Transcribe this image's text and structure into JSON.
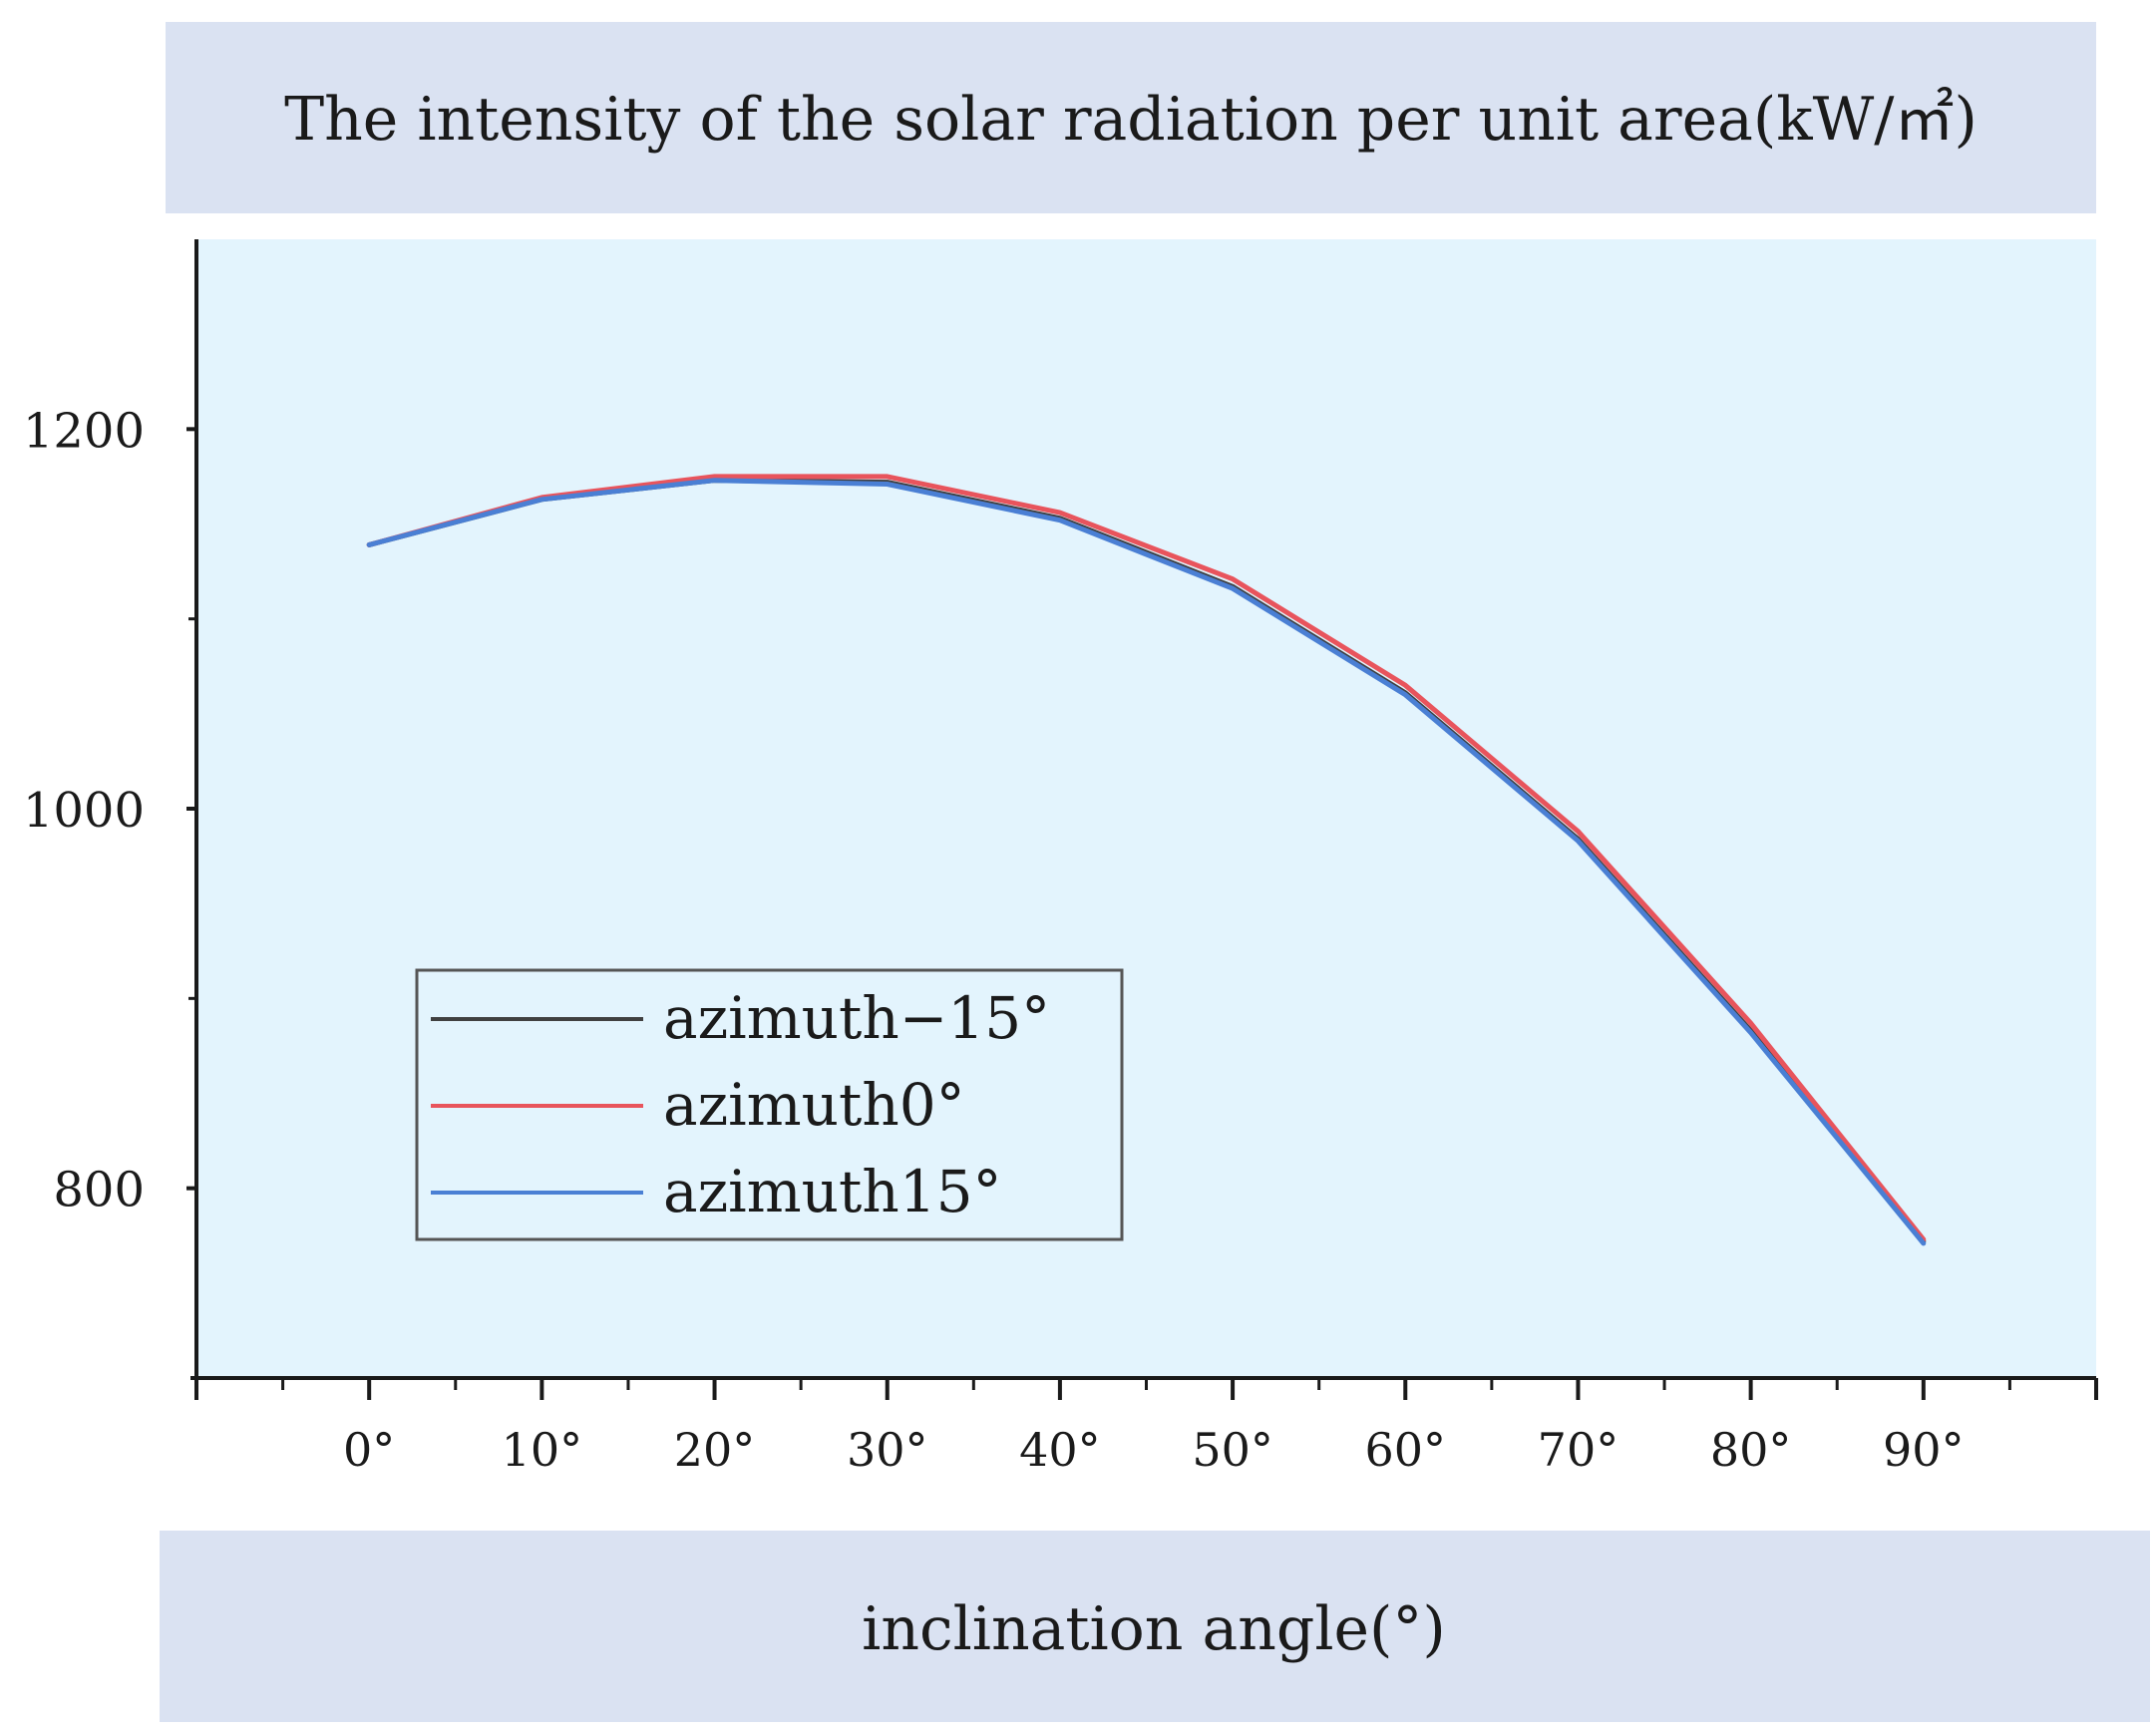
{
  "colors": {
    "banner": "#dae2f2",
    "plot_bg": "#e3f4fd",
    "axis": "#1a1a1a",
    "text": "#1a1a1a"
  },
  "chart_data": {
    "type": "line",
    "title": "The intensity of the solar radiation per unit area(kW/㎡)",
    "xlabel": "inclination angle(°)",
    "ylabel": "",
    "x": [
      0,
      10,
      20,
      30,
      40,
      50,
      60,
      70,
      80,
      90
    ],
    "x_tick_labels": [
      "0°",
      "10°",
      "20°",
      "30°",
      "40°",
      "50°",
      "60°",
      "70°",
      "80°",
      "90°"
    ],
    "xlim": [
      -10,
      100
    ],
    "y_ticks": [
      800,
      1000,
      1200
    ],
    "y_tick_labels": [
      "800",
      "1000",
      "1200"
    ],
    "ylim": [
      700,
      1300
    ],
    "grid": false,
    "legend_position": "lower-left",
    "series": [
      {
        "name": "azimuth−15°",
        "color": "#404040",
        "values": [
          1139,
          1163,
          1173,
          1172,
          1153,
          1117,
          1061,
          984,
          883,
          772
        ]
      },
      {
        "name": "azimuth0°",
        "color": "#e8545c",
        "values": [
          1139,
          1164,
          1175,
          1175,
          1156,
          1121,
          1065,
          988,
          887,
          773
        ]
      },
      {
        "name": "azimuth15°",
        "color": "#4a7fd4",
        "values": [
          1139,
          1163,
          1173,
          1171,
          1152,
          1116,
          1060,
          983,
          882,
          771
        ]
      }
    ]
  }
}
